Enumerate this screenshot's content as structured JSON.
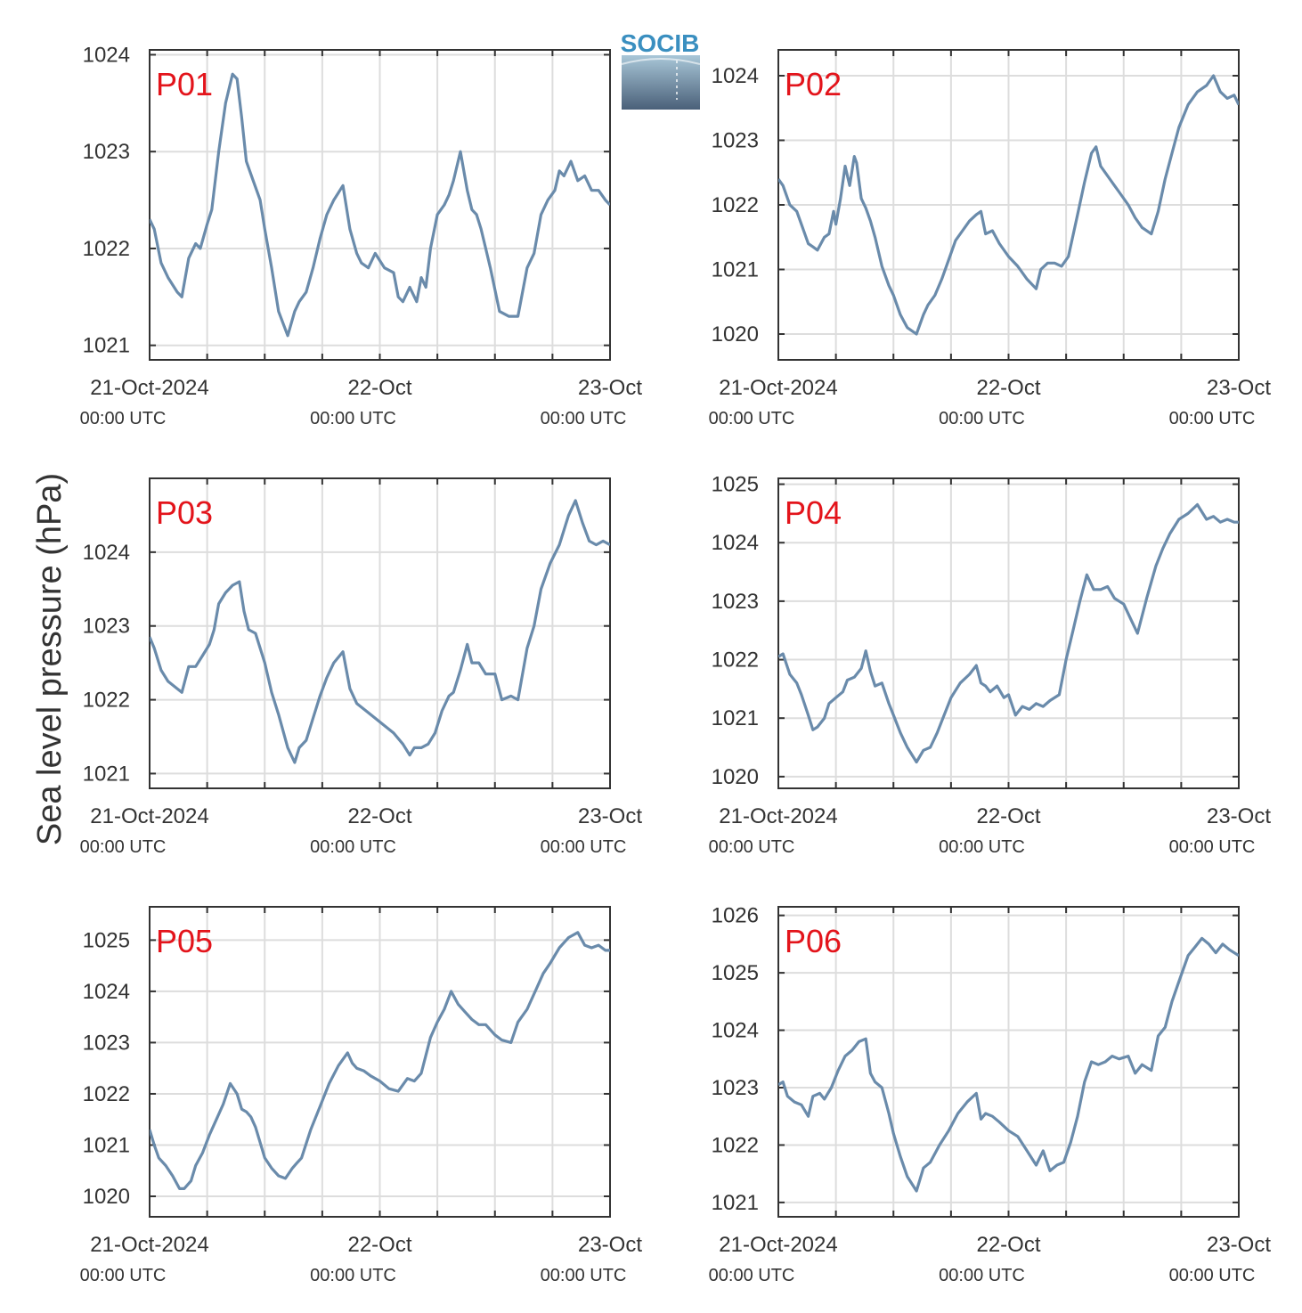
{
  "figure": {
    "ylabel": "Sea level pressure (hPa)",
    "logo_text": "SOCIB",
    "colors": {
      "line": "#6a8bab",
      "grid": "#dddddd",
      "axes": "#333333",
      "panel_label": "#e3141b"
    }
  },
  "x_ticks": [
    {
      "day": 0,
      "date_label": "21-Oct-2024",
      "time_label": "00:00 UTC"
    },
    {
      "day": 1,
      "date_label": "22-Oct",
      "time_label": "00:00 UTC"
    },
    {
      "day": 2,
      "date_label": "23-Oct",
      "time_label": "00:00 UTC"
    }
  ],
  "chart_data": [
    {
      "type": "line",
      "label": "P01",
      "xlim": [
        0,
        2
      ],
      "ylim": [
        1020.85,
        1024.05
      ],
      "yticks": [
        1021,
        1022,
        1023,
        1024
      ],
      "x": [
        0,
        0.02,
        0.05,
        0.08,
        0.12,
        0.14,
        0.17,
        0.2,
        0.22,
        0.25,
        0.27,
        0.3,
        0.33,
        0.36,
        0.38,
        0.4,
        0.42,
        0.45,
        0.48,
        0.5,
        0.53,
        0.56,
        0.6,
        0.63,
        0.65,
        0.68,
        0.71,
        0.74,
        0.77,
        0.8,
        0.84,
        0.87,
        0.9,
        0.92,
        0.95,
        0.98,
        1.02,
        1.06,
        1.08,
        1.1,
        1.13,
        1.16,
        1.18,
        1.2,
        1.22,
        1.25,
        1.28,
        1.3,
        1.32,
        1.35,
        1.38,
        1.4,
        1.42,
        1.44,
        1.46,
        1.48,
        1.52,
        1.56,
        1.6,
        1.64,
        1.67,
        1.7,
        1.73,
        1.76,
        1.78,
        1.8,
        1.83,
        1.86,
        1.89,
        1.92,
        1.95,
        1.98,
        2.0
      ],
      "y": [
        1022.3,
        1022.2,
        1021.85,
        1021.7,
        1021.55,
        1021.5,
        1021.9,
        1022.05,
        1022.0,
        1022.25,
        1022.4,
        1023.0,
        1023.5,
        1023.8,
        1023.75,
        1023.35,
        1022.9,
        1022.7,
        1022.5,
        1022.2,
        1021.8,
        1021.35,
        1021.1,
        1021.35,
        1021.45,
        1021.55,
        1021.8,
        1022.1,
        1022.35,
        1022.5,
        1022.65,
        1022.2,
        1021.95,
        1021.85,
        1021.8,
        1021.95,
        1021.8,
        1021.75,
        1021.5,
        1021.45,
        1021.6,
        1021.45,
        1021.7,
        1021.6,
        1022.0,
        1022.35,
        1022.45,
        1022.55,
        1022.7,
        1023.0,
        1022.6,
        1022.4,
        1022.35,
        1022.2,
        1022.0,
        1021.8,
        1021.35,
        1021.3,
        1021.3,
        1021.8,
        1021.95,
        1022.35,
        1022.5,
        1022.6,
        1022.8,
        1022.75,
        1022.9,
        1022.7,
        1022.75,
        1022.6,
        1022.6,
        1022.5,
        1022.45
      ]
    },
    {
      "type": "line",
      "label": "P02",
      "xlim": [
        0,
        2
      ],
      "ylim": [
        1019.6,
        1024.4
      ],
      "yticks": [
        1020,
        1021,
        1022,
        1023,
        1024
      ],
      "x": [
        0,
        0.02,
        0.05,
        0.08,
        0.1,
        0.13,
        0.15,
        0.17,
        0.2,
        0.22,
        0.24,
        0.25,
        0.27,
        0.29,
        0.31,
        0.33,
        0.34,
        0.36,
        0.38,
        0.4,
        0.42,
        0.45,
        0.48,
        0.5,
        0.53,
        0.56,
        0.6,
        0.63,
        0.65,
        0.68,
        0.71,
        0.74,
        0.77,
        0.8,
        0.83,
        0.86,
        0.88,
        0.9,
        0.93,
        0.96,
        1.0,
        1.04,
        1.08,
        1.12,
        1.14,
        1.17,
        1.2,
        1.23,
        1.26,
        1.3,
        1.33,
        1.36,
        1.38,
        1.4,
        1.42,
        1.44,
        1.46,
        1.48,
        1.52,
        1.55,
        1.58,
        1.62,
        1.65,
        1.68,
        1.71,
        1.74,
        1.78,
        1.82,
        1.86,
        1.89,
        1.92,
        1.95,
        1.98,
        2.0
      ],
      "y": [
        1022.4,
        1022.3,
        1022.0,
        1021.9,
        1021.7,
        1021.4,
        1021.35,
        1021.3,
        1021.5,
        1021.55,
        1021.9,
        1021.7,
        1022.1,
        1022.6,
        1022.3,
        1022.75,
        1022.65,
        1022.1,
        1021.95,
        1021.75,
        1021.5,
        1021.05,
        1020.75,
        1020.6,
        1020.3,
        1020.1,
        1020.0,
        1020.3,
        1020.45,
        1020.6,
        1020.85,
        1021.15,
        1021.45,
        1021.6,
        1021.75,
        1021.85,
        1021.9,
        1021.55,
        1021.6,
        1021.4,
        1021.2,
        1021.05,
        1020.85,
        1020.7,
        1021.0,
        1021.1,
        1021.1,
        1021.05,
        1021.2,
        1021.85,
        1022.35,
        1022.8,
        1022.9,
        1022.6,
        1022.5,
        1022.4,
        1022.3,
        1022.2,
        1022.0,
        1021.8,
        1021.65,
        1021.55,
        1021.9,
        1022.4,
        1022.8,
        1023.2,
        1023.55,
        1023.75,
        1023.85,
        1024.0,
        1023.75,
        1023.65,
        1023.7,
        1023.55
      ]
    },
    {
      "type": "line",
      "label": "P03",
      "xlim": [
        0,
        2
      ],
      "ylim": [
        1020.8,
        1025.0
      ],
      "yticks": [
        1021,
        1022,
        1023,
        1024
      ],
      "x": [
        0,
        0.02,
        0.05,
        0.08,
        0.12,
        0.14,
        0.17,
        0.2,
        0.23,
        0.26,
        0.28,
        0.3,
        0.33,
        0.36,
        0.39,
        0.41,
        0.43,
        0.46,
        0.5,
        0.53,
        0.56,
        0.6,
        0.63,
        0.65,
        0.68,
        0.71,
        0.74,
        0.77,
        0.8,
        0.84,
        0.87,
        0.9,
        0.94,
        0.98,
        1.02,
        1.06,
        1.1,
        1.13,
        1.15,
        1.18,
        1.21,
        1.24,
        1.27,
        1.3,
        1.32,
        1.35,
        1.38,
        1.4,
        1.43,
        1.46,
        1.5,
        1.53,
        1.57,
        1.6,
        1.64,
        1.67,
        1.7,
        1.74,
        1.78,
        1.82,
        1.85,
        1.88,
        1.91,
        1.94,
        1.97,
        2.0
      ],
      "y": [
        1022.85,
        1022.7,
        1022.4,
        1022.25,
        1022.15,
        1022.1,
        1022.45,
        1022.45,
        1022.6,
        1022.75,
        1022.95,
        1023.3,
        1023.45,
        1023.55,
        1023.6,
        1023.2,
        1022.95,
        1022.9,
        1022.5,
        1022.1,
        1021.8,
        1021.35,
        1021.15,
        1021.35,
        1021.45,
        1021.75,
        1022.05,
        1022.3,
        1022.5,
        1022.65,
        1022.15,
        1021.95,
        1021.85,
        1021.75,
        1021.65,
        1021.55,
        1021.4,
        1021.25,
        1021.35,
        1021.35,
        1021.4,
        1021.55,
        1021.85,
        1022.05,
        1022.1,
        1022.4,
        1022.75,
        1022.5,
        1022.5,
        1022.35,
        1022.35,
        1022.0,
        1022.05,
        1022.0,
        1022.7,
        1023.0,
        1023.5,
        1023.85,
        1024.1,
        1024.5,
        1024.7,
        1024.4,
        1024.15,
        1024.1,
        1024.15,
        1024.1
      ]
    },
    {
      "type": "line",
      "label": "P04",
      "xlim": [
        0,
        2
      ],
      "ylim": [
        1019.8,
        1025.1
      ],
      "yticks": [
        1020,
        1021,
        1022,
        1023,
        1024,
        1025
      ],
      "x": [
        0,
        0.02,
        0.05,
        0.08,
        0.1,
        0.13,
        0.15,
        0.17,
        0.2,
        0.22,
        0.25,
        0.28,
        0.3,
        0.33,
        0.36,
        0.38,
        0.4,
        0.42,
        0.45,
        0.48,
        0.5,
        0.53,
        0.56,
        0.6,
        0.63,
        0.66,
        0.69,
        0.72,
        0.75,
        0.79,
        0.83,
        0.86,
        0.88,
        0.9,
        0.92,
        0.95,
        0.98,
        1.0,
        1.03,
        1.06,
        1.09,
        1.12,
        1.15,
        1.18,
        1.22,
        1.25,
        1.28,
        1.31,
        1.34,
        1.37,
        1.4,
        1.43,
        1.46,
        1.5,
        1.53,
        1.56,
        1.6,
        1.64,
        1.67,
        1.7,
        1.74,
        1.78,
        1.82,
        1.86,
        1.89,
        1.92,
        1.95,
        1.98,
        2.0
      ],
      "y": [
        1022.05,
        1022.1,
        1021.75,
        1021.6,
        1021.4,
        1021.05,
        1020.8,
        1020.85,
        1021.0,
        1021.25,
        1021.35,
        1021.45,
        1021.65,
        1021.7,
        1021.85,
        1022.15,
        1021.8,
        1021.55,
        1021.6,
        1021.25,
        1021.05,
        1020.75,
        1020.5,
        1020.25,
        1020.45,
        1020.5,
        1020.75,
        1021.05,
        1021.35,
        1021.6,
        1021.75,
        1021.9,
        1021.6,
        1021.55,
        1021.45,
        1021.55,
        1021.35,
        1021.4,
        1021.05,
        1021.2,
        1021.15,
        1021.25,
        1021.2,
        1021.3,
        1021.4,
        1022.0,
        1022.5,
        1023.0,
        1023.45,
        1023.2,
        1023.2,
        1023.25,
        1023.05,
        1022.95,
        1022.7,
        1022.45,
        1023.05,
        1023.6,
        1023.9,
        1024.15,
        1024.4,
        1024.5,
        1024.65,
        1024.4,
        1024.45,
        1024.35,
        1024.4,
        1024.35,
        1024.35
      ]
    },
    {
      "type": "line",
      "label": "P05",
      "xlim": [
        0,
        2
      ],
      "ylim": [
        1019.6,
        1025.65
      ],
      "yticks": [
        1020,
        1021,
        1022,
        1023,
        1024,
        1025
      ],
      "x": [
        0,
        0.02,
        0.04,
        0.07,
        0.1,
        0.13,
        0.15,
        0.18,
        0.2,
        0.23,
        0.26,
        0.29,
        0.32,
        0.35,
        0.38,
        0.4,
        0.42,
        0.44,
        0.46,
        0.48,
        0.5,
        0.53,
        0.56,
        0.59,
        0.62,
        0.64,
        0.66,
        0.7,
        0.74,
        0.78,
        0.82,
        0.86,
        0.88,
        0.9,
        0.93,
        0.96,
        1.0,
        1.04,
        1.08,
        1.12,
        1.15,
        1.18,
        1.22,
        1.25,
        1.28,
        1.31,
        1.34,
        1.37,
        1.4,
        1.43,
        1.46,
        1.5,
        1.53,
        1.57,
        1.6,
        1.64,
        1.68,
        1.71,
        1.74,
        1.78,
        1.82,
        1.86,
        1.89,
        1.92,
        1.95,
        1.98,
        2.0
      ],
      "y": [
        1021.3,
        1021.0,
        1020.75,
        1020.6,
        1020.4,
        1020.15,
        1020.15,
        1020.3,
        1020.6,
        1020.85,
        1021.2,
        1021.5,
        1021.8,
        1022.2,
        1022.0,
        1021.7,
        1021.65,
        1021.55,
        1021.35,
        1021.05,
        1020.75,
        1020.55,
        1020.4,
        1020.35,
        1020.55,
        1020.65,
        1020.75,
        1021.3,
        1021.75,
        1022.2,
        1022.55,
        1022.8,
        1022.6,
        1022.5,
        1022.45,
        1022.35,
        1022.25,
        1022.1,
        1022.05,
        1022.3,
        1022.25,
        1022.4,
        1023.1,
        1023.4,
        1023.65,
        1024.0,
        1023.75,
        1023.6,
        1023.45,
        1023.35,
        1023.35,
        1023.15,
        1023.05,
        1023.0,
        1023.4,
        1023.65,
        1024.05,
        1024.35,
        1024.55,
        1024.85,
        1025.05,
        1025.15,
        1024.9,
        1024.85,
        1024.9,
        1024.8,
        1024.8
      ]
    },
    {
      "type": "line",
      "label": "P06",
      "xlim": [
        0,
        2
      ],
      "ylim": [
        1020.75,
        1026.15
      ],
      "yticks": [
        1021,
        1022,
        1023,
        1024,
        1025,
        1026
      ],
      "x": [
        0,
        0.02,
        0.04,
        0.07,
        0.1,
        0.13,
        0.15,
        0.18,
        0.2,
        0.23,
        0.26,
        0.29,
        0.32,
        0.35,
        0.38,
        0.4,
        0.42,
        0.45,
        0.48,
        0.5,
        0.53,
        0.56,
        0.6,
        0.63,
        0.66,
        0.7,
        0.74,
        0.78,
        0.82,
        0.86,
        0.88,
        0.9,
        0.93,
        0.96,
        1.0,
        1.04,
        1.08,
        1.12,
        1.15,
        1.18,
        1.21,
        1.24,
        1.27,
        1.3,
        1.33,
        1.36,
        1.39,
        1.42,
        1.45,
        1.48,
        1.52,
        1.55,
        1.58,
        1.62,
        1.65,
        1.68,
        1.71,
        1.74,
        1.78,
        1.81,
        1.84,
        1.87,
        1.9,
        1.93,
        1.96,
        2.0
      ],
      "y": [
        1023.05,
        1023.1,
        1022.85,
        1022.75,
        1022.7,
        1022.5,
        1022.85,
        1022.9,
        1022.8,
        1023.0,
        1023.3,
        1023.55,
        1023.65,
        1023.8,
        1023.85,
        1023.25,
        1023.1,
        1023.0,
        1022.55,
        1022.2,
        1021.8,
        1021.45,
        1021.2,
        1021.6,
        1021.7,
        1022.0,
        1022.25,
        1022.55,
        1022.75,
        1022.9,
        1022.45,
        1022.55,
        1022.5,
        1022.4,
        1022.25,
        1022.15,
        1021.9,
        1021.65,
        1021.9,
        1021.55,
        1021.65,
        1021.7,
        1022.05,
        1022.5,
        1023.1,
        1023.45,
        1023.4,
        1023.45,
        1023.55,
        1023.5,
        1023.55,
        1023.25,
        1023.4,
        1023.3,
        1023.9,
        1024.05,
        1024.5,
        1024.85,
        1025.3,
        1025.45,
        1025.6,
        1025.5,
        1025.35,
        1025.5,
        1025.4,
        1025.3
      ]
    }
  ]
}
